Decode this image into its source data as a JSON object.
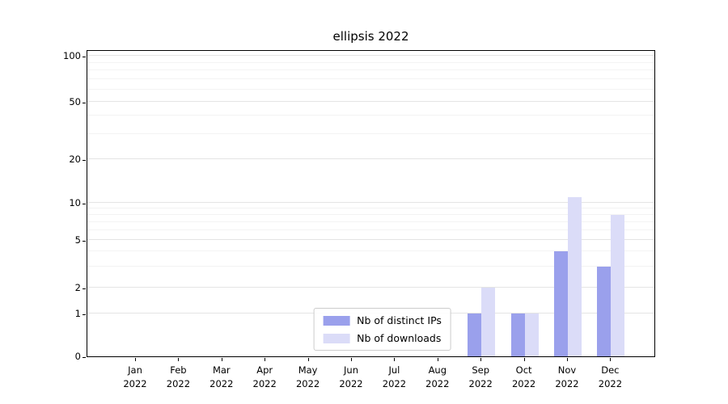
{
  "title": "ellipsis 2022",
  "chart_data": {
    "type": "bar",
    "title": "ellipsis 2022",
    "categories": [
      "Jan 2022",
      "Feb 2022",
      "Mar 2022",
      "Apr 2022",
      "May 2022",
      "Jun 2022",
      "Jul 2022",
      "Aug 2022",
      "Sep 2022",
      "Oct 2022",
      "Nov 2022",
      "Dec 2022"
    ],
    "series": [
      {
        "name": "Nb of distinct IPs",
        "color": "#9aa0ec",
        "values": [
          0,
          0,
          0,
          0,
          0,
          0,
          0,
          0,
          1,
          1,
          4,
          3
        ]
      },
      {
        "name": "Nb of downloads",
        "color": "#dbdcf8",
        "values": [
          0,
          0,
          0,
          0,
          0,
          0,
          0,
          0,
          2,
          1,
          11,
          8
        ]
      }
    ],
    "yticks": [
      0,
      1,
      2,
      5,
      10,
      20,
      50,
      100
    ],
    "ylim": [
      0,
      110
    ],
    "yscale": "symlog",
    "xlabel": "",
    "ylabel": "",
    "grid": "horizontal",
    "legend_position": "lower center"
  }
}
